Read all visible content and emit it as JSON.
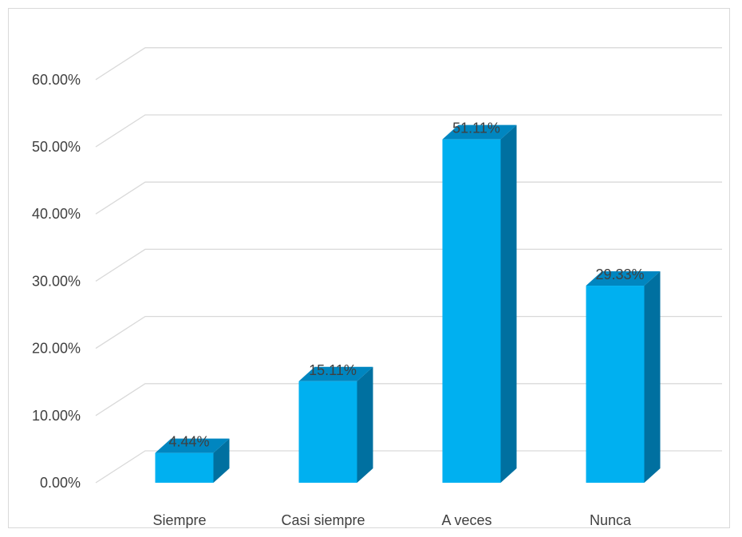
{
  "chart_data": {
    "type": "bar",
    "style": "3d-column",
    "categories": [
      "Siempre",
      "Casi siempre",
      "A veces",
      "Nunca"
    ],
    "values": [
      4.44,
      15.11,
      51.11,
      29.33
    ],
    "data_labels": [
      "4.44%",
      "15.11%",
      "51.11%",
      "29.33%"
    ],
    "ylim": [
      0,
      60
    ],
    "yticks": [
      0,
      10,
      20,
      30,
      40,
      50,
      60
    ],
    "ytick_labels": [
      "0.00%",
      "10.00%",
      "20.00%",
      "30.00%",
      "40.00%",
      "50.00%",
      "60.00%"
    ],
    "grid": true,
    "legend": "none",
    "colors": {
      "front": "#00B0F0",
      "side": "#0070A0",
      "top": "#0086C0",
      "grid": "#d9d9d9",
      "text": "#404040"
    }
  }
}
